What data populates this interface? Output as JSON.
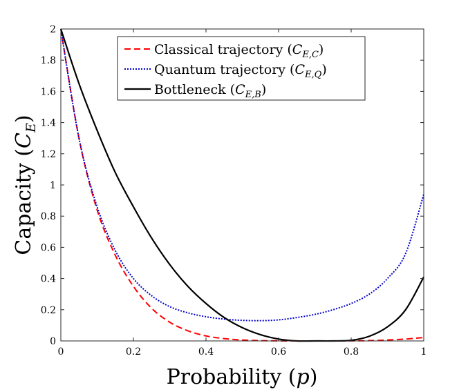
{
  "chart_data": {
    "type": "line",
    "xlabel": "Probability (p)",
    "ylabel": "Capacity (C_E)",
    "xlabel_parts": {
      "text": "Probability (",
      "var": "p",
      "close": ")"
    },
    "ylabel_parts": {
      "text": "Capacity (",
      "var": "C",
      "sub": "E",
      "close": ")"
    },
    "xlim": [
      0,
      1
    ],
    "ylim": [
      0,
      2
    ],
    "xticks": [
      0,
      0.2,
      0.4,
      0.6,
      0.8,
      1
    ],
    "yticks": [
      0,
      0.2,
      0.4,
      0.6,
      0.8,
      1,
      1.2,
      1.4,
      1.6,
      1.8,
      2
    ],
    "xtick_labels": [
      "0",
      "0.2",
      "0.4",
      "0.6",
      "0.8",
      "1"
    ],
    "ytick_labels": [
      "0",
      "0.2",
      "0.4",
      "0.6",
      "0.8",
      "1",
      "1.2",
      "1.4",
      "1.6",
      "1.8",
      "2"
    ],
    "grid": false,
    "legend_position": "top",
    "x": [
      0,
      0.05,
      0.1,
      0.15,
      0.2,
      0.25,
      0.3,
      0.35,
      0.4,
      0.45,
      0.5,
      0.55,
      0.6,
      0.65,
      0.7,
      0.75,
      0.8,
      0.85,
      0.9,
      0.95,
      1.0
    ],
    "series": [
      {
        "name": "Classical trajectory (C_E,C)",
        "legend_parts": {
          "text": "Classical trajectory (",
          "var": "C",
          "sub": "E,C",
          "close": ")"
        },
        "color": "#ff0000",
        "dash": "dashed",
        "values": [
          2.0,
          1.3,
          0.84,
          0.55,
          0.35,
          0.21,
          0.12,
          0.065,
          0.032,
          0.015,
          0.006,
          0.002,
          0.0005,
          0.0,
          0.0,
          0.0,
          0.0005,
          0.002,
          0.006,
          0.012,
          0.022
        ]
      },
      {
        "name": "Quantum trajectory (C_E,Q)",
        "legend_parts": {
          "text": "Quantum trajectory (",
          "var": "C",
          "sub": "E,Q",
          "close": ")"
        },
        "color": "#0000cc",
        "dash": "dotted",
        "values": [
          2.0,
          1.3,
          0.86,
          0.58,
          0.4,
          0.29,
          0.22,
          0.18,
          0.155,
          0.14,
          0.132,
          0.13,
          0.135,
          0.15,
          0.17,
          0.2,
          0.24,
          0.3,
          0.4,
          0.56,
          0.94
        ]
      },
      {
        "name": "Bottleneck (C_E,B)",
        "legend_parts": {
          "text": "Bottleneck (",
          "var": "C",
          "sub": "E,B",
          "close": ")"
        },
        "color": "#000000",
        "dash": "solid",
        "values": [
          2.0,
          1.65,
          1.35,
          1.08,
          0.86,
          0.66,
          0.49,
          0.35,
          0.24,
          0.15,
          0.085,
          0.04,
          0.012,
          0.0,
          0.0,
          0.0,
          0.004,
          0.03,
          0.09,
          0.2,
          0.41
        ]
      }
    ]
  }
}
